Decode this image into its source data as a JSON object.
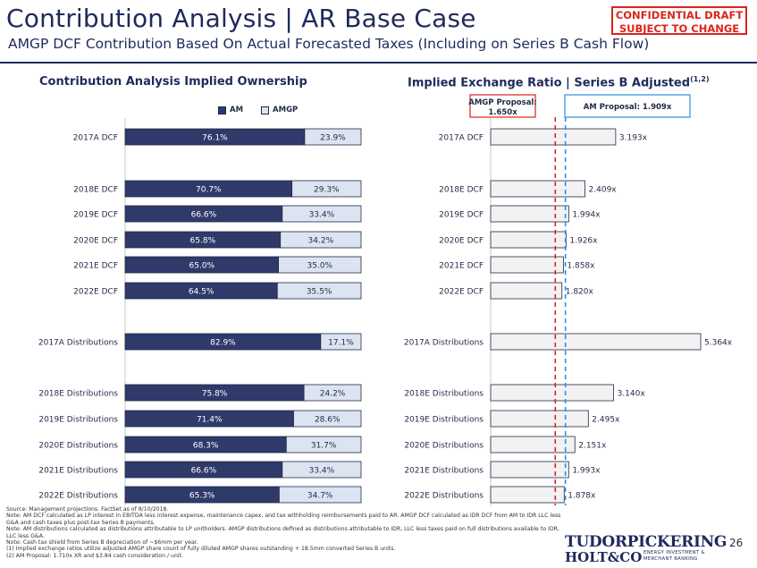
{
  "header": {
    "title": "Contribution Analysis | AR Base Case",
    "subtitle": "AMGP DCF Contribution Based On Actual Forecasted Taxes (Including on Series B Cash Flow)",
    "confidential": [
      "CONFIDENTIAL DRAFT",
      "SUBJECT TO CHANGE"
    ]
  },
  "left_title": "Contribution Analysis Implied Ownership",
  "right_title": "Implied Exchange Ratio | Series B Adjusted",
  "right_title_sup": "(1,2)",
  "legend": {
    "am": "AM",
    "amgp": "AMGP"
  },
  "proposals": {
    "amgp_lines": [
      "AMGP Proposal:",
      "1.650x"
    ],
    "am_label": "AM Proposal: 1.909x"
  },
  "colors": {
    "am": "#2f3a6b",
    "amgp": "#dce4f2",
    "ratio_fill": "#f2f2f2",
    "amgp_line": "#e02020",
    "am_line": "#2f8fe0",
    "brand": "#1f2a5c"
  },
  "chart_data": [
    {
      "type": "bar",
      "stacked": true,
      "orientation": "horizontal",
      "categories": [
        "2017A DCF",
        "2018E DCF",
        "2019E DCF",
        "2020E DCF",
        "2021E DCF",
        "2022E DCF",
        "2017A Distributions",
        "2018E Distributions",
        "2019E Distributions",
        "2020E Distributions",
        "2021E Distributions",
        "2022E Distributions"
      ],
      "series": [
        {
          "name": "AM",
          "values": [
            76.1,
            70.7,
            66.6,
            65.8,
            65.0,
            64.5,
            82.9,
            75.8,
            71.4,
            68.3,
            66.6,
            65.3
          ],
          "labels": [
            "76.1%",
            "70.7%",
            "66.6%",
            "65.8%",
            "65.0%",
            "64.5%",
            "82.9%",
            "75.8%",
            "71.4%",
            "68.3%",
            "66.6%",
            "65.3%"
          ]
        },
        {
          "name": "AMGP",
          "values": [
            23.9,
            29.3,
            33.4,
            34.2,
            35.0,
            35.5,
            17.1,
            24.2,
            28.6,
            31.7,
            33.4,
            34.7
          ],
          "labels": [
            "23.9%",
            "29.3%",
            "33.4%",
            "34.2%",
            "35.0%",
            "35.5%",
            "17.1%",
            "24.2%",
            "28.6%",
            "31.7%",
            "33.4%",
            "34.7%"
          ]
        }
      ],
      "xlim": [
        0,
        100
      ]
    },
    {
      "type": "bar",
      "orientation": "horizontal",
      "categories": [
        "2017A DCF",
        "2018E DCF",
        "2019E DCF",
        "2020E DCF",
        "2021E DCF",
        "2022E DCF",
        "2017A Distributions",
        "2018E Distributions",
        "2019E Distributions",
        "2020E Distributions",
        "2021E Distributions",
        "2022E Distributions"
      ],
      "values": [
        3.193,
        2.409,
        1.994,
        1.926,
        1.858,
        1.82,
        5.364,
        3.14,
        2.495,
        2.151,
        1.993,
        1.878
      ],
      "labels": [
        "3.193x",
        "2.409x",
        "1.994x",
        "1.926x",
        "1.858x",
        "1.820x",
        "5.364x",
        "3.140x",
        "2.495x",
        "2.151x",
        "1.993x",
        "1.878x"
      ],
      "reference_lines": [
        1.65,
        1.909
      ],
      "xlim": [
        0,
        5.364
      ]
    }
  ],
  "footnotes": [
    "Source: Management projections. FactSet as of 8/10/2018.",
    "Note: AM DCF calculated as LP interest in EBITDA less interest expense, maintenance capex, and tax withholding reimbursements paid to AR. AMGP DCF calculated as IDR DCF from AM to IDR LLC less",
    "G&A and cash taxes plus post-tax Series B payments.",
    "Note: AM distributions calculated as distributions attributable to LP unitholders. AMGP distributions defined as distributions attributable to IDR, LLC less taxes paid on full distributions available to IDR,",
    "LLC less G&A.",
    "Note: Cash tax shield from Series B depreciation of ~$6mm per year.",
    "(1)     Implied exchange ratios utilize adjusted AMGP share count of fully diluted AMGP shares outstanding + 18.5mm converted Series B units.",
    "(2)     AM Proposal: 1.710x XR and $3.84 cash consideration / unit."
  ],
  "page_number": "26",
  "logo": {
    "line1": "TUDORPICKERING",
    "line2": "HOLT&CO",
    "tag": [
      "ENERGY INVESTMENT &",
      "MERCHANT BANKING"
    ]
  }
}
